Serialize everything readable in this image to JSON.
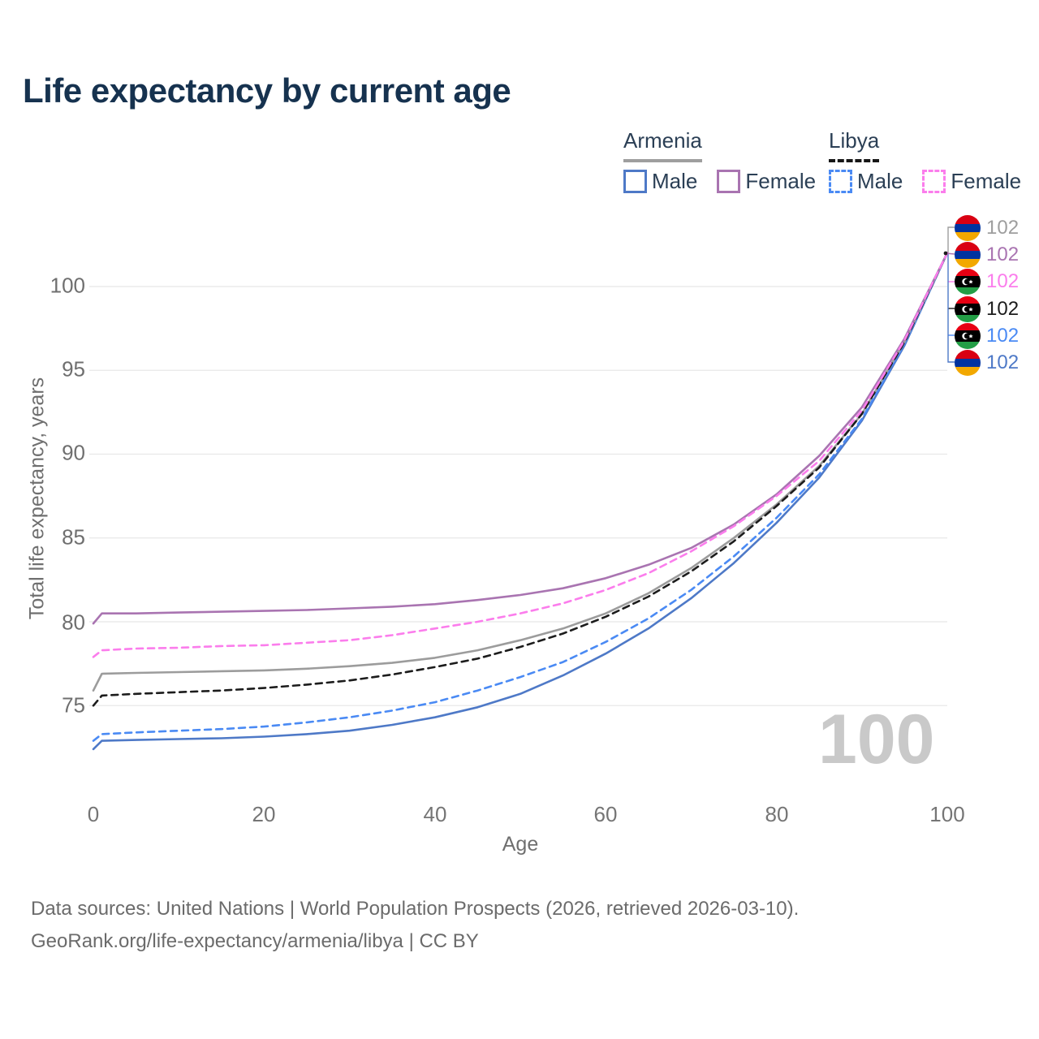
{
  "title": "Life expectancy by current age",
  "legend": {
    "armenia": {
      "label": "Armenia",
      "male": "Male",
      "female": "Female"
    },
    "libya": {
      "label": "Libya",
      "male": "Male",
      "female": "Female"
    }
  },
  "y_axis": {
    "title": "Total life expectancy, years",
    "ticks": [
      "100",
      "95",
      "90",
      "85",
      "80",
      "75"
    ]
  },
  "x_axis": {
    "title": "Age",
    "ticks": [
      "0",
      "20",
      "40",
      "60",
      "80",
      "100"
    ]
  },
  "age_indicator": "100",
  "end_labels": [
    {
      "flag": "armenia",
      "country": "Armenia",
      "series": "Both sexes",
      "value": "102",
      "color": "#9e9e9e"
    },
    {
      "flag": "armenia",
      "country": "Armenia",
      "series": "Female",
      "value": "102",
      "color": "#a974b1"
    },
    {
      "flag": "libya",
      "country": "Libya",
      "series": "Female",
      "value": "102",
      "color": "#fb7dec"
    },
    {
      "flag": "libya",
      "country": "Libya",
      "series": "Both sexes",
      "value": "102",
      "color": "#1c1c1c"
    },
    {
      "flag": "libya",
      "country": "Libya",
      "series": "Male",
      "value": "102",
      "color": "#4a8af4"
    },
    {
      "flag": "armenia",
      "country": "Armenia",
      "series": "Male",
      "value": "102",
      "color": "#4e79c7"
    }
  ],
  "footer": {
    "line1": "Data sources: United Nations | World Population Prospects (2026, retrieved 2026-03-10).",
    "line2": "GeoRank.org/life-expectancy/armenia/libya | CC BY"
  },
  "chart_data": {
    "type": "line",
    "title": "Life expectancy by current age",
    "xlabel": "Age",
    "ylabel": "Total life expectancy, years",
    "xlim": [
      0,
      100
    ],
    "x_ticks": [
      0,
      20,
      40,
      60,
      80,
      100
    ],
    "y_gridlines": [
      75,
      80,
      85,
      90,
      95,
      100
    ],
    "grid": "horizontal-only",
    "legend_position": "top-right",
    "current_age_indicator": 100,
    "end_value_labels": [
      102,
      102,
      102,
      102,
      102,
      102
    ],
    "x": [
      0,
      1,
      5,
      10,
      15,
      20,
      25,
      30,
      35,
      40,
      45,
      50,
      55,
      60,
      65,
      70,
      75,
      80,
      85,
      90,
      95,
      100
    ],
    "series": [
      {
        "name": "Armenia Male",
        "country": "Armenia",
        "sex": "Male",
        "line": "solid",
        "color": "#4e79c7",
        "values": [
          72.4,
          72.9,
          72.95,
          73.0,
          73.05,
          73.15,
          73.3,
          73.5,
          73.85,
          74.3,
          74.9,
          75.7,
          76.8,
          78.1,
          79.6,
          81.4,
          83.5,
          85.9,
          88.6,
          92.0,
          96.5,
          102
        ]
      },
      {
        "name": "Libya Male",
        "country": "Libya",
        "sex": "Male",
        "line": "dashed",
        "color": "#4a8af4",
        "values": [
          72.9,
          73.3,
          73.4,
          73.5,
          73.6,
          73.75,
          74.0,
          74.3,
          74.7,
          75.2,
          75.9,
          76.7,
          77.6,
          78.8,
          80.2,
          81.9,
          83.9,
          86.2,
          88.8,
          92.1,
          96.6,
          102
        ]
      },
      {
        "name": "Armenia (both sexes)",
        "country": "Armenia",
        "sex": "Both",
        "line": "solid",
        "color": "#9c9c9c",
        "values": [
          75.9,
          76.9,
          76.95,
          77.0,
          77.05,
          77.1,
          77.2,
          77.35,
          77.55,
          77.85,
          78.3,
          78.9,
          79.6,
          80.5,
          81.7,
          83.2,
          85.0,
          87.0,
          89.3,
          92.4,
          96.7,
          102
        ]
      },
      {
        "name": "Libya (both sexes)",
        "country": "Libya",
        "sex": "Both",
        "line": "dashed",
        "color": "#1c1c1c",
        "values": [
          75.0,
          75.6,
          75.7,
          75.8,
          75.9,
          76.05,
          76.25,
          76.5,
          76.85,
          77.3,
          77.8,
          78.5,
          79.3,
          80.3,
          81.5,
          83.0,
          84.8,
          86.9,
          89.2,
          92.4,
          96.7,
          102
        ]
      },
      {
        "name": "Armenia Female",
        "country": "Armenia",
        "sex": "Female",
        "line": "solid",
        "color": "#a974b1",
        "values": [
          79.9,
          80.5,
          80.5,
          80.55,
          80.6,
          80.65,
          80.7,
          80.8,
          80.9,
          81.05,
          81.3,
          81.6,
          82.0,
          82.6,
          83.4,
          84.4,
          85.8,
          87.6,
          89.9,
          92.8,
          96.9,
          102
        ]
      },
      {
        "name": "Libya Female",
        "country": "Libya",
        "sex": "Female",
        "line": "dashed",
        "color": "#fb7dec",
        "values": [
          77.9,
          78.3,
          78.4,
          78.45,
          78.55,
          78.6,
          78.75,
          78.9,
          79.2,
          79.6,
          80.0,
          80.5,
          81.1,
          81.9,
          82.9,
          84.2,
          85.7,
          87.5,
          89.6,
          92.6,
          96.8,
          102
        ]
      }
    ]
  }
}
